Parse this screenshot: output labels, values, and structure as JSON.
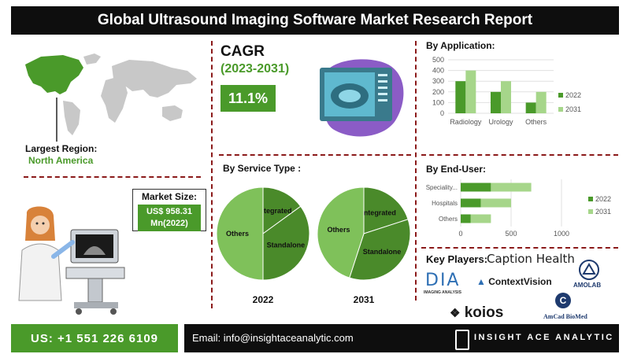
{
  "title": "Global Ultrasound Imaging Software Market Research Report",
  "region": {
    "label": "Largest Region:",
    "value": "North America"
  },
  "cagr": {
    "title": "CAGR",
    "years": "(2023-2031)",
    "value": "11.1%"
  },
  "market_size": {
    "label": "Market Size:",
    "value_line1": "US$ 958.31",
    "value_line2": "Mn(2022)"
  },
  "service_type": {
    "heading": "By Service Type :"
  },
  "application": {
    "heading": "By Application:"
  },
  "end_user": {
    "heading": "By End-User:"
  },
  "key_players": {
    "heading": "Key Players:",
    "names": [
      "Caption Health",
      "DIA",
      "IMAGING ANALYSIS",
      "ContextVision",
      "AMOLAB",
      "koios",
      "AmCad BioMed"
    ]
  },
  "footer": {
    "phone": "US: +1 551 226 6109",
    "email": "Email: info@insightaceanalytic.com",
    "brand": "INSIGHT ACE ANALYTIC"
  },
  "colors": {
    "dark_green": "#4a9a2a",
    "light_green": "#a6d68a",
    "pie_dark": "#4a8a2a",
    "pie_light": "#7fc15a",
    "accent_red": "#8b1a1a"
  },
  "chart_data": [
    {
      "type": "bar",
      "title": "By Application:",
      "categories": [
        "Radiology",
        "Urology",
        "Others"
      ],
      "series": [
        {
          "name": "2022",
          "values": [
            300,
            200,
            100
          ]
        },
        {
          "name": "2031",
          "values": [
            400,
            300,
            200
          ]
        }
      ],
      "ylim": [
        0,
        500
      ],
      "yticks": [
        "0",
        "100",
        "200",
        "300",
        "400",
        "500"
      ],
      "grid": true,
      "legend": "right"
    },
    {
      "type": "bar",
      "orientation": "horizontal",
      "stacked": true,
      "title": "By End-User:",
      "categories": [
        "Speciality...",
        "Hospitals",
        "Others"
      ],
      "series": [
        {
          "name": "2022",
          "values": [
            300,
            200,
            100
          ]
        },
        {
          "name": "2031",
          "values": [
            400,
            300,
            200
          ]
        }
      ],
      "xlim": [
        0,
        1000
      ],
      "xticks": [
        "0",
        "500",
        "1000"
      ],
      "grid": true,
      "legend": "right"
    },
    {
      "type": "pie",
      "label": "2022",
      "slices": [
        {
          "name": "Integrated",
          "value": 15
        },
        {
          "name": "Standalone",
          "value": 35
        },
        {
          "name": "Others",
          "value": 50
        }
      ]
    },
    {
      "type": "pie",
      "label": "2031",
      "slices": [
        {
          "name": "Integrated",
          "value": 20
        },
        {
          "name": "Standalone",
          "value": 35
        },
        {
          "name": "Others",
          "value": 45
        }
      ]
    }
  ]
}
